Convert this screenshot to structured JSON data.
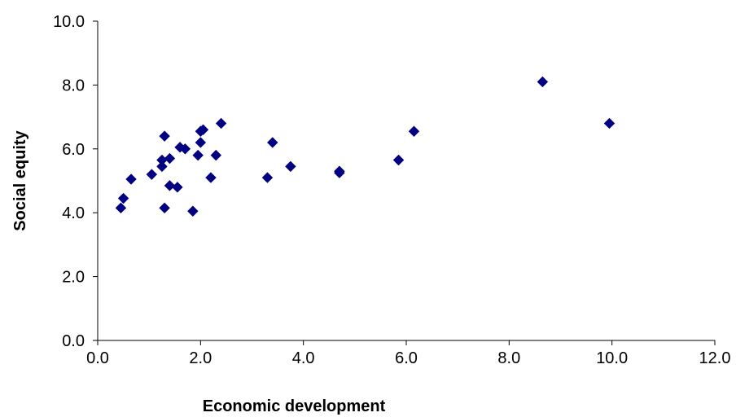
{
  "chart_data": {
    "type": "scatter",
    "xlabel": "Economic development",
    "ylabel": "Social equity",
    "xlim": [
      0,
      12
    ],
    "ylim": [
      0,
      10
    ],
    "xticks": [
      0,
      2,
      4,
      6,
      8,
      10,
      12
    ],
    "yticks": [
      0,
      2,
      4,
      6,
      8,
      10
    ],
    "xtick_labels": [
      "0.0",
      "2.0",
      "4.0",
      "6.0",
      "8.0",
      "10.0",
      "12.0"
    ],
    "ytick_labels": [
      "0.0",
      "2.0",
      "4.0",
      "6.0",
      "8.0",
      "10.0"
    ],
    "grid": false,
    "legend": "none",
    "marker": "diamond",
    "color": "#000080",
    "series": [
      {
        "points": [
          [
            0.45,
            4.15
          ],
          [
            0.5,
            4.45
          ],
          [
            0.65,
            5.05
          ],
          [
            1.05,
            5.2
          ],
          [
            1.25,
            5.45
          ],
          [
            1.25,
            5.65
          ],
          [
            1.3,
            6.4
          ],
          [
            1.3,
            4.15
          ],
          [
            1.4,
            5.7
          ],
          [
            1.4,
            4.85
          ],
          [
            1.55,
            4.8
          ],
          [
            1.6,
            6.05
          ],
          [
            1.7,
            6.0
          ],
          [
            1.85,
            4.05
          ],
          [
            1.95,
            5.8
          ],
          [
            2.0,
            6.55
          ],
          [
            2.0,
            6.2
          ],
          [
            2.05,
            6.6
          ],
          [
            2.2,
            5.1
          ],
          [
            2.3,
            5.8
          ],
          [
            2.4,
            6.8
          ],
          [
            3.3,
            5.1
          ],
          [
            3.4,
            6.2
          ],
          [
            3.75,
            5.45
          ],
          [
            4.7,
            5.3
          ],
          [
            4.7,
            5.25
          ],
          [
            5.85,
            5.65
          ],
          [
            6.15,
            6.55
          ],
          [
            8.65,
            8.1
          ],
          [
            9.95,
            6.8
          ]
        ]
      }
    ]
  }
}
